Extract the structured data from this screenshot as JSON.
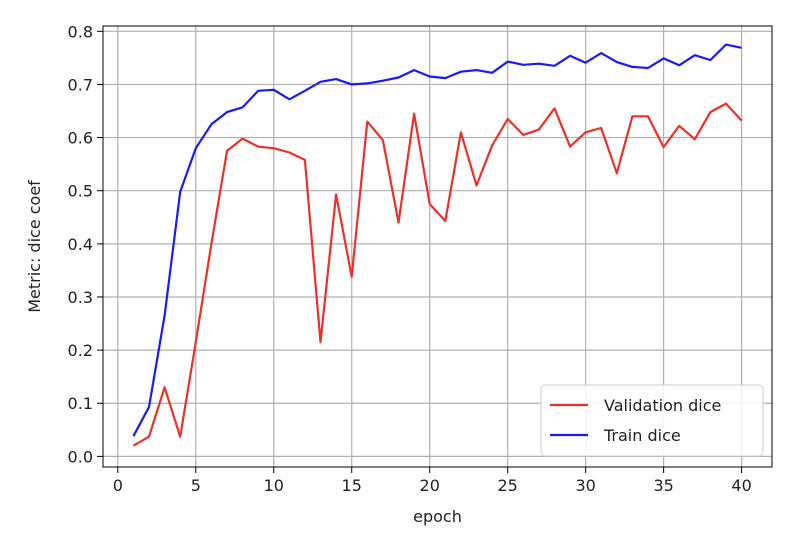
{
  "chart_data": {
    "type": "line",
    "title": "",
    "xlabel": "epoch",
    "ylabel": "Metric: dice coef",
    "xlim": [
      -0.95,
      41.95
    ],
    "ylim": [
      -0.02,
      0.81
    ],
    "xticks": [
      0,
      5,
      10,
      15,
      20,
      25,
      30,
      35,
      40
    ],
    "yticks": [
      0.0,
      0.1,
      0.2,
      0.3,
      0.4,
      0.5,
      0.6,
      0.7,
      0.8
    ],
    "xtick_labels": [
      "0",
      "5",
      "10",
      "15",
      "20",
      "25",
      "30",
      "35",
      "40"
    ],
    "ytick_labels": [
      "0.0",
      "0.1",
      "0.2",
      "0.3",
      "0.4",
      "0.5",
      "0.6",
      "0.7",
      "0.8"
    ],
    "grid": true,
    "legend_position": "lower-right",
    "x": [
      1,
      2,
      3,
      4,
      5,
      6,
      7,
      8,
      9,
      10,
      11,
      12,
      13,
      14,
      15,
      16,
      17,
      18,
      19,
      20,
      21,
      22,
      23,
      24,
      25,
      26,
      27,
      28,
      29,
      30,
      31,
      32,
      33,
      34,
      35,
      36,
      37,
      38,
      39,
      40
    ],
    "series": [
      {
        "name": "Validation dice",
        "color": "#e8322b",
        "values": [
          0.02,
          0.037,
          0.13,
          0.037,
          0.215,
          0.4,
          0.575,
          0.598,
          0.583,
          0.58,
          0.572,
          0.558,
          0.215,
          0.493,
          0.338,
          0.63,
          0.595,
          0.44,
          0.645,
          0.475,
          0.443,
          0.61,
          0.51,
          0.585,
          0.635,
          0.605,
          0.615,
          0.655,
          0.583,
          0.61,
          0.618,
          0.533,
          0.64,
          0.64,
          0.582,
          0.622,
          0.597,
          0.648,
          0.664,
          0.632
        ]
      },
      {
        "name": "Train dice",
        "color": "#1a1aff",
        "values": [
          0.038,
          0.093,
          0.265,
          0.498,
          0.58,
          0.625,
          0.648,
          0.657,
          0.688,
          0.69,
          0.672,
          0.688,
          0.705,
          0.71,
          0.7,
          0.702,
          0.707,
          0.713,
          0.727,
          0.715,
          0.712,
          0.724,
          0.727,
          0.722,
          0.743,
          0.737,
          0.739,
          0.735,
          0.754,
          0.741,
          0.759,
          0.742,
          0.733,
          0.731,
          0.749,
          0.736,
          0.755,
          0.746,
          0.775,
          0.769
        ]
      }
    ]
  }
}
